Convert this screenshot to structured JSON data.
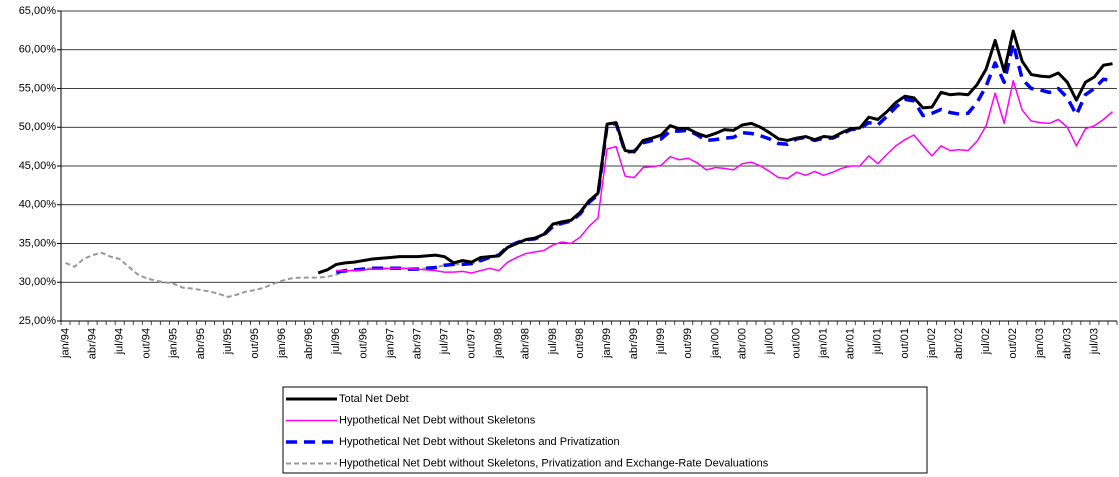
{
  "chart_data": {
    "type": "line",
    "categories": [
      "jan/94",
      null,
      null,
      "abr/94",
      null,
      null,
      "jul/94",
      null,
      null,
      "out/94",
      null,
      null,
      "jan/95",
      null,
      null,
      "abr/95",
      null,
      null,
      "jul/95",
      null,
      null,
      "out/95",
      null,
      null,
      "jan/96",
      null,
      null,
      "abr/96",
      null,
      null,
      "jul/96",
      null,
      null,
      "out/96",
      null,
      null,
      "jan/97",
      null,
      null,
      "abr/97",
      null,
      null,
      "jul/97",
      null,
      null,
      "out/97",
      null,
      null,
      "jan/98",
      null,
      null,
      "abr/98",
      null,
      null,
      "jul/98",
      null,
      null,
      "out/98",
      null,
      null,
      "jan/99",
      null,
      null,
      "abr/99",
      null,
      null,
      "jul/99",
      null,
      null,
      "out/99",
      null,
      null,
      "jan/00",
      null,
      null,
      "abr/00",
      null,
      null,
      "jul/00",
      null,
      null,
      "out/00",
      null,
      null,
      "jan/01",
      null,
      null,
      "abr/01",
      null,
      null,
      "jul/01",
      null,
      null,
      "out/01",
      null,
      null,
      "jan/02",
      null,
      null,
      "abr/02",
      null,
      null,
      "jul/02",
      null,
      null,
      "out/02",
      null,
      null,
      "jan/03",
      null,
      null,
      "abr/03",
      null,
      null,
      "jul/03",
      null,
      null
    ],
    "series": [
      {
        "name": "Total Net Debt",
        "color": "#000000",
        "values": [
          null,
          null,
          null,
          null,
          null,
          null,
          null,
          null,
          null,
          null,
          null,
          null,
          null,
          null,
          null,
          null,
          null,
          null,
          null,
          null,
          null,
          null,
          null,
          null,
          null,
          null,
          null,
          null,
          31.2,
          31.6,
          32.3,
          32.5,
          32.6,
          32.8,
          33,
          33.1,
          33.2,
          33.3,
          33.3,
          33.3,
          33.4,
          33.5,
          33.3,
          32.5,
          32.8,
          32.6,
          33.2,
          33.3,
          33.4,
          34.5,
          35,
          35.5,
          35.7,
          36.2,
          37.5,
          37.8,
          38,
          39,
          40.5,
          41.5,
          50.4,
          50.6,
          47,
          46.8,
          48.3,
          48.6,
          49,
          50.2,
          49.8,
          49.8,
          49.2,
          48.8,
          49.2,
          49.7,
          49.6,
          50.3,
          50.5,
          50,
          49.3,
          48.5,
          48.3,
          48.6,
          48.8,
          48.4,
          48.8,
          48.7,
          49.3,
          49.8,
          49.9,
          51.3,
          51,
          52,
          53.2,
          54,
          53.8,
          52.5,
          52.6,
          54.5,
          54.2,
          54.3,
          54.2,
          55.5,
          57.5,
          61.2,
          57.2,
          62.4,
          58.5,
          56.8,
          56.6,
          56.5,
          57,
          55.8,
          53.5,
          55.8,
          56.5,
          58,
          58.2
        ]
      },
      {
        "name": "Hypothetical Net Debt without Skeletons",
        "color": "#ff00ff",
        "values": [
          null,
          null,
          null,
          null,
          null,
          null,
          null,
          null,
          null,
          null,
          null,
          null,
          null,
          null,
          null,
          null,
          null,
          null,
          null,
          null,
          null,
          null,
          null,
          null,
          null,
          null,
          null,
          null,
          null,
          null,
          31.5,
          31.5,
          31.5,
          31.6,
          31.7,
          31.7,
          31.8,
          31.8,
          31.8,
          31.7,
          31.6,
          31.5,
          31.3,
          31.3,
          31.4,
          31.2,
          31.5,
          31.8,
          31.5,
          32.6,
          33.2,
          33.7,
          33.9,
          34.1,
          34.8,
          35.2,
          35,
          35.8,
          37.2,
          38.3,
          47.2,
          47.5,
          43.7,
          43.5,
          44.8,
          44.9,
          45.1,
          46.2,
          45.8,
          46,
          45.4,
          44.5,
          44.8,
          44.7,
          44.5,
          45.3,
          45.5,
          45,
          44.3,
          43.5,
          43.4,
          44.2,
          43.8,
          44.3,
          43.8,
          44.2,
          44.7,
          45,
          45,
          46.3,
          45.3,
          46.5,
          47.6,
          48.4,
          49,
          47.6,
          46.3,
          47.6,
          47,
          47.1,
          47,
          48.2,
          50.2,
          54.4,
          50.5,
          56,
          52.2,
          50.8,
          50.6,
          50.5,
          51,
          50,
          47.6,
          49.8,
          50.2,
          51,
          52
        ]
      },
      {
        "name": "Hypothetical Net Debt without Skeletons and Privatization",
        "color": "#0000ff",
        "values": [
          null,
          null,
          null,
          null,
          null,
          null,
          null,
          null,
          null,
          null,
          null,
          null,
          null,
          null,
          null,
          null,
          null,
          null,
          null,
          null,
          null,
          null,
          null,
          null,
          null,
          null,
          null,
          null,
          null,
          null,
          31.3,
          31.5,
          31.6,
          31.7,
          31.8,
          31.8,
          31.8,
          31.8,
          31.7,
          31.7,
          31.8,
          31.9,
          32.2,
          32.3,
          32.3,
          32.4,
          32.8,
          33.2,
          33.5,
          34.6,
          35.1,
          35.5,
          35.6,
          36.1,
          37.2,
          37.6,
          37.9,
          38.8,
          40.3,
          41.3,
          50.2,
          50.5,
          46.8,
          46.9,
          48,
          48.3,
          48.5,
          49.5,
          49.5,
          49.6,
          49,
          48.3,
          48.4,
          48.6,
          48.7,
          49.3,
          49.2,
          48.9,
          48.5,
          47.9,
          47.8,
          48.5,
          48.7,
          48.3,
          48.6,
          48.6,
          49.1,
          49.7,
          49.8,
          50.6,
          50.3,
          51.4,
          52.6,
          53.6,
          53.4,
          51.5,
          51.8,
          52.3,
          51.9,
          51.7,
          51.8,
          53.2,
          55.3,
          58.3,
          55.8,
          60.8,
          56.2,
          55,
          54.8,
          54.5,
          55,
          53.8,
          51.6,
          54.2,
          55,
          56.2,
          56
        ]
      },
      {
        "name": "Hypothetical Net Debt without Skeletons, Privatization and Exchange-Rate Devaluations",
        "color": "#999999",
        "values": [
          32.5,
          32,
          33,
          33.5,
          33.8,
          33.3,
          33,
          32,
          31,
          30.5,
          30.2,
          30,
          29.8,
          29.3,
          29.2,
          29,
          28.8,
          28.5,
          28.1,
          28.4,
          28.8,
          29,
          29.3,
          29.8,
          30.2,
          30.5,
          30.6,
          30.6,
          30.6,
          30.7,
          31,
          31.3,
          31.6,
          31.7,
          31.8,
          31.8,
          31.8,
          31.8,
          31.7,
          31.7,
          31.8,
          31.9,
          32.2,
          32.3,
          32.3,
          32.4,
          32.8,
          33.2,
          33.5,
          34.6,
          35.1,
          35.5,
          35.6,
          36.1,
          37.2,
          37.6,
          37.9,
          38.8,
          40.3,
          41.3,
          null,
          null,
          null,
          null,
          null,
          null,
          null,
          null,
          null,
          null,
          null,
          null,
          null,
          null,
          null,
          null,
          null,
          null,
          null,
          null,
          null,
          null,
          null,
          null,
          null,
          null,
          null,
          null,
          null,
          null,
          null,
          null,
          null,
          null,
          null,
          null,
          null,
          null,
          null,
          null,
          null,
          null,
          null,
          null,
          null,
          null,
          null,
          null,
          null,
          null,
          null,
          null,
          null,
          null,
          null,
          null,
          null
        ]
      }
    ],
    "ylim": [
      25,
      65
    ],
    "yticks": [
      {
        "value": 25,
        "label": "25,00%"
      },
      {
        "value": 30,
        "label": "30,00%"
      },
      {
        "value": 35,
        "label": "35,00%"
      },
      {
        "value": 40,
        "label": "40,00%"
      },
      {
        "value": 45,
        "label": "45,00%"
      },
      {
        "value": 50,
        "label": "50,00%"
      },
      {
        "value": 55,
        "label": "55,00%"
      },
      {
        "value": 60,
        "label": "60,00%"
      },
      {
        "value": 65,
        "label": "65,00%"
      }
    ],
    "grid": true,
    "legend": "bottom"
  }
}
